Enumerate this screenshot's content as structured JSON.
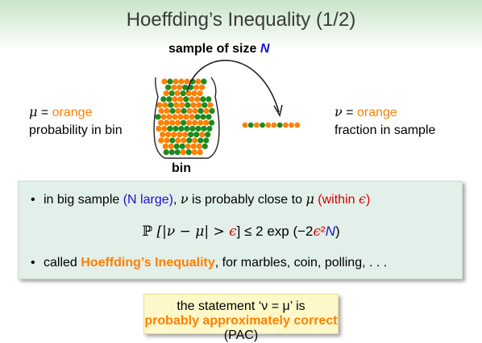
{
  "title": "Hoeffding’s Inequality (1/2)",
  "sample_label": {
    "text": "sample of size ",
    "n": "N"
  },
  "bin_label": "bin",
  "left_text": {
    "mu": "μ",
    "eq": " = ",
    "orange": "orange",
    "line2": "probability in bin"
  },
  "right_text": {
    "nu": "ν",
    "eq": " = ",
    "orange": "orange",
    "line2": "fraction in sample"
  },
  "bullet1": {
    "dot": "•",
    "a": "in big sample ",
    "b": "(N large)",
    "c": ", ",
    "nu": "ν",
    "d": " is probably close to ",
    "mu": "μ",
    "e": " (within ",
    "eps": "ϵ",
    "f": ")"
  },
  "formula": {
    "p": "ℙ",
    "lhs": " [|ν − μ| > ",
    "eps": "ϵ",
    "rhs": "] ≤ 2 exp (−2",
    "eps2": "ϵ",
    "sq": "²",
    "n": "N",
    "close": ")"
  },
  "bullet2": {
    "dot": "•",
    "a": "called ",
    "b": "Hoeffding’s Inequality",
    "c": ", for marbles, coin, polling, . . ."
  },
  "pac": {
    "line1": "the statement ‘ν = μ’ is",
    "bold": "probably approximately correct",
    "tail": " (PAC)"
  },
  "colors": {
    "orange": "#ff8000",
    "green": "#1f8a1f",
    "blue": "#1414d2",
    "red": "#d40000"
  },
  "sample_marbles": [
    "orange",
    "green",
    "orange",
    "green",
    "orange",
    "orange",
    "green",
    "orange",
    "orange",
    "orange"
  ]
}
